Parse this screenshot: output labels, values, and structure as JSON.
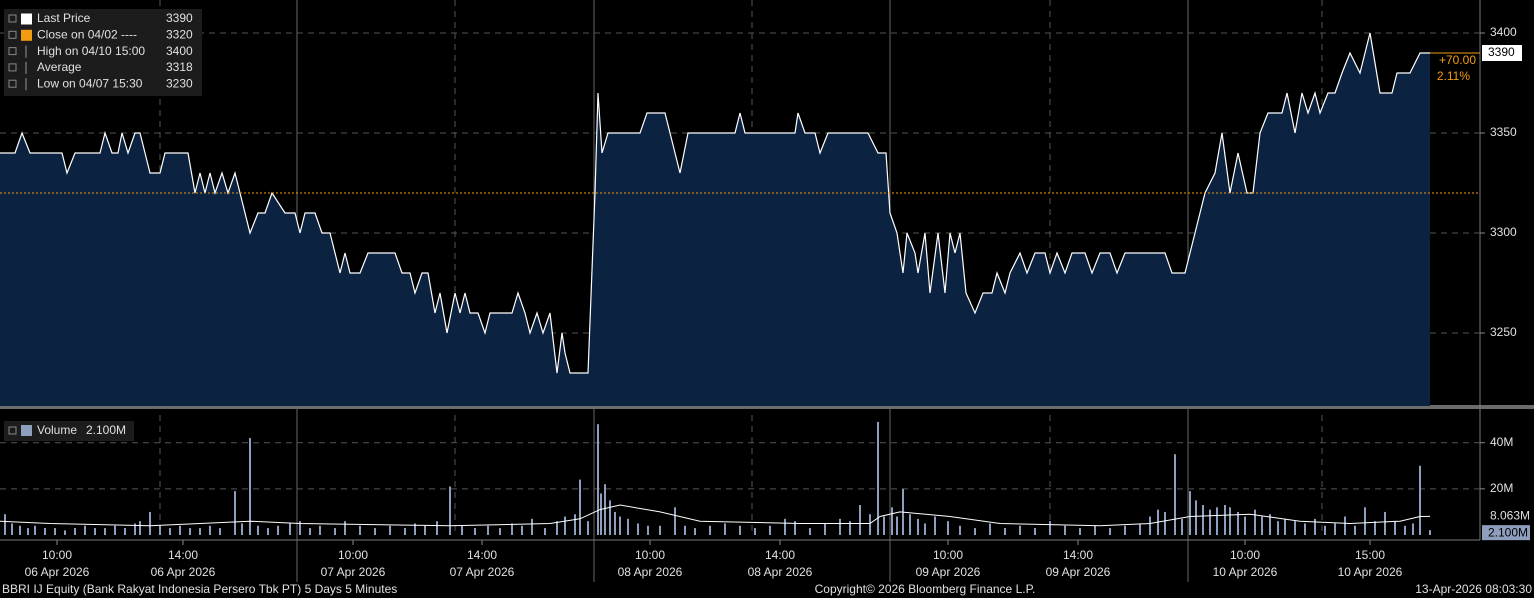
{
  "chart_data": [
    {
      "type": "area",
      "xlim": [
        0,
        1480
      ],
      "ylim": [
        3213.5,
        3416.5
      ],
      "yticks": [
        3250,
        3300,
        3350,
        3400
      ],
      "xgrid": [
        160,
        455,
        752,
        1050,
        1322
      ],
      "grid": true,
      "series": [
        {
          "name": "Last Price",
          "color": "#ffffff",
          "fill": "#0b2240",
          "x": [
            0,
            15,
            22,
            30,
            62,
            67,
            75,
            100,
            105,
            112,
            118,
            122,
            128,
            135,
            140,
            145,
            150,
            160,
            165,
            188,
            195,
            200,
            205,
            210,
            215,
            222,
            228,
            235,
            240,
            250,
            258,
            265,
            272,
            285,
            295,
            300,
            305,
            315,
            322,
            330,
            340,
            345,
            350,
            360,
            368,
            395,
            402,
            410,
            415,
            422,
            428,
            435,
            440,
            447,
            455,
            460,
            465,
            470,
            478,
            485,
            490,
            512,
            518,
            525,
            530,
            537,
            543,
            550,
            557,
            562,
            565,
            570,
            588,
            595,
            598,
            602,
            608,
            640,
            647,
            665,
            680,
            688,
            735,
            740,
            745,
            795,
            798,
            805,
            815,
            820,
            828,
            868,
            878,
            886,
            890,
            897,
            903,
            907,
            915,
            918,
            925,
            930,
            938,
            945,
            950,
            955,
            960,
            966,
            975,
            983,
            992,
            997,
            1005,
            1010,
            1020,
            1027,
            1035,
            1045,
            1050,
            1057,
            1065,
            1072,
            1085,
            1092,
            1100,
            1110,
            1117,
            1125,
            1165,
            1172,
            1185,
            1195,
            1205,
            1215,
            1222,
            1230,
            1238,
            1247,
            1253,
            1260,
            1268,
            1282,
            1287,
            1295,
            1302,
            1308,
            1315,
            1320,
            1328,
            1335,
            1342,
            1350,
            1360,
            1370,
            1380,
            1392,
            1397,
            1410,
            1420,
            1430
          ],
          "values": [
            3340,
            3340,
            3350,
            3340,
            3340,
            3330,
            3340,
            3340,
            3350,
            3340,
            3340,
            3350,
            3340,
            3350,
            3350,
            3340,
            3330,
            3330,
            3340,
            3340,
            3320,
            3330,
            3320,
            3330,
            3320,
            3330,
            3320,
            3330,
            3320,
            3300,
            3310,
            3310,
            3320,
            3310,
            3310,
            3300,
            3310,
            3310,
            3300,
            3300,
            3280,
            3290,
            3280,
            3280,
            3290,
            3290,
            3280,
            3280,
            3270,
            3280,
            3280,
            3260,
            3270,
            3250,
            3270,
            3260,
            3270,
            3260,
            3260,
            3250,
            3260,
            3260,
            3270,
            3260,
            3250,
            3260,
            3250,
            3260,
            3230,
            3250,
            3240,
            3230,
            3230,
            3320,
            3370,
            3340,
            3350,
            3350,
            3360,
            3360,
            3330,
            3350,
            3350,
            3360,
            3350,
            3350,
            3360,
            3350,
            3350,
            3340,
            3350,
            3350,
            3340,
            3340,
            3310,
            3300,
            3280,
            3300,
            3290,
            3280,
            3300,
            3270,
            3300,
            3270,
            3300,
            3290,
            3300,
            3270,
            3260,
            3270,
            3270,
            3280,
            3270,
            3280,
            3290,
            3280,
            3290,
            3290,
            3280,
            3290,
            3280,
            3290,
            3290,
            3280,
            3290,
            3290,
            3280,
            3290,
            3290,
            3280,
            3280,
            3300,
            3320,
            3330,
            3350,
            3320,
            3340,
            3320,
            3320,
            3350,
            3360,
            3360,
            3370,
            3350,
            3370,
            3360,
            3370,
            3360,
            3370,
            3370,
            3380,
            3390,
            3380,
            3400,
            3370,
            3370,
            3380,
            3380,
            3390,
            3390
          ]
        }
      ],
      "stats": [
        {
          "label": "Close on 04/02 ----",
          "value": 3320,
          "color": "#f39c12"
        },
        {
          "label": "High on 04/10 15:00",
          "value": 3400
        },
        {
          "label": "Average",
          "value": 3318
        },
        {
          "label": "Low on 04/07 15:30",
          "value": 3230
        }
      ],
      "change": {
        "value": 70,
        "label": "+70.00"
      },
      "change_pct": {
        "value": 2.11,
        "label": "2.11%"
      }
    },
    {
      "type": "bar",
      "xlim": [
        0,
        1480
      ],
      "ylim": [
        0,
        52
      ],
      "yticks": [
        {
          "value": 20,
          "label": "20M"
        },
        {
          "value": 40,
          "label": "40M"
        }
      ],
      "xticks": [
        {
          "value": 57,
          "label": "10:00"
        },
        {
          "value": 183,
          "label": "14:00"
        },
        {
          "value": 353,
          "label": "10:00"
        },
        {
          "value": 482,
          "label": "14:00"
        },
        {
          "value": 650,
          "label": "10:00"
        },
        {
          "value": 780,
          "label": "14:00"
        },
        {
          "value": 948,
          "label": "10:00"
        },
        {
          "value": 1078,
          "label": "14:00"
        },
        {
          "value": 1245,
          "label": "10:00"
        },
        {
          "value": 1370,
          "label": "15:00"
        }
      ],
      "xtick_dates": [
        "06 Apr 2026",
        "06 Apr 2026",
        "07 Apr 2026",
        "07 Apr 2026",
        "08 Apr 2026",
        "08 Apr 2026",
        "09 Apr 2026",
        "09 Apr 2026",
        "10 Apr 2026",
        "10 Apr 2026"
      ],
      "xgrid": [
        160,
        455,
        752,
        1050,
        1322
      ],
      "series": [
        {
          "name": "Volume",
          "color": "#8d9fbd",
          "last_label": "2.100M",
          "x": [
            5,
            12,
            20,
            28,
            35,
            45,
            55,
            65,
            75,
            85,
            95,
            105,
            115,
            125,
            135,
            140,
            150,
            160,
            170,
            180,
            190,
            200,
            210,
            220,
            235,
            242,
            250,
            258,
            268,
            278,
            290,
            300,
            310,
            320,
            335,
            345,
            360,
            375,
            390,
            405,
            415,
            425,
            437,
            450,
            462,
            475,
            488,
            500,
            512,
            522,
            532,
            545,
            557,
            565,
            575,
            580,
            588,
            598,
            601,
            605,
            610,
            615,
            620,
            628,
            638,
            648,
            660,
            675,
            685,
            695,
            710,
            725,
            740,
            755,
            770,
            785,
            795,
            810,
            825,
            840,
            850,
            860,
            870,
            878,
            884,
            892,
            897,
            903,
            910,
            918,
            925,
            935,
            948,
            960,
            975,
            990,
            1005,
            1020,
            1035,
            1050,
            1065,
            1080,
            1095,
            1110,
            1125,
            1140,
            1150,
            1158,
            1165,
            1175,
            1182,
            1190,
            1196,
            1203,
            1210,
            1217,
            1225,
            1230,
            1238,
            1245,
            1255,
            1262,
            1270,
            1278,
            1285,
            1295,
            1305,
            1315,
            1325,
            1335,
            1345,
            1355,
            1365,
            1375,
            1385,
            1395,
            1405,
            1413,
            1420,
            1430
          ],
          "values": [
            9,
            5,
            4,
            3,
            4,
            3,
            3,
            2,
            3,
            4,
            3,
            3,
            4,
            3,
            5,
            6,
            10,
            4,
            3,
            4,
            3,
            3,
            4,
            3,
            19,
            5,
            42,
            4,
            3,
            4,
            5,
            6,
            3,
            4,
            3,
            6,
            4,
            3,
            4,
            3,
            5,
            4,
            6,
            21,
            4,
            3,
            4,
            3,
            5,
            4,
            7,
            3,
            6,
            8,
            9,
            24,
            6,
            48,
            18,
            22,
            15,
            10,
            8,
            7,
            5,
            4,
            4,
            12,
            4,
            3,
            4,
            5,
            4,
            3,
            4,
            7,
            6,
            3,
            5,
            7,
            6,
            13,
            9,
            49,
            8,
            12,
            8,
            20,
            9,
            7,
            5,
            8,
            6,
            4,
            3,
            5,
            3,
            4,
            3,
            6,
            4,
            3,
            4,
            3,
            4,
            5,
            8,
            11,
            10,
            35,
            7,
            19,
            15,
            13,
            11,
            12,
            13,
            12,
            10,
            8,
            11,
            8,
            9,
            6,
            7,
            6,
            5,
            7,
            4,
            5,
            8,
            4,
            12,
            6,
            10,
            6,
            4,
            5,
            30,
            2.1
          ]
        },
        {
          "name": "Average",
          "color": "#ffffff",
          "last_label": "8.063M",
          "x": [
            0,
            50,
            150,
            250,
            300,
            450,
            550,
            580,
            600,
            620,
            660,
            700,
            800,
            870,
            880,
            900,
            950,
            1000,
            1100,
            1150,
            1190,
            1250,
            1300,
            1350,
            1400,
            1420,
            1430
          ],
          "values": [
            6,
            5,
            4,
            6,
            5,
            4,
            5,
            7,
            11,
            13,
            10,
            6,
            5,
            5,
            8,
            10,
            8,
            5,
            4,
            5,
            8,
            9,
            6,
            5,
            6,
            8,
            8.063
          ]
        }
      ]
    }
  ],
  "footer": {
    "left": "BBRI IJ Equity (Bank Rakyat Indonesia Persero Tbk PT) 5 Days 5 Minutes",
    "center": "Copyright© 2026 Bloomberg Finance L.P.",
    "right": "13-Apr-2026 08:03:30"
  }
}
